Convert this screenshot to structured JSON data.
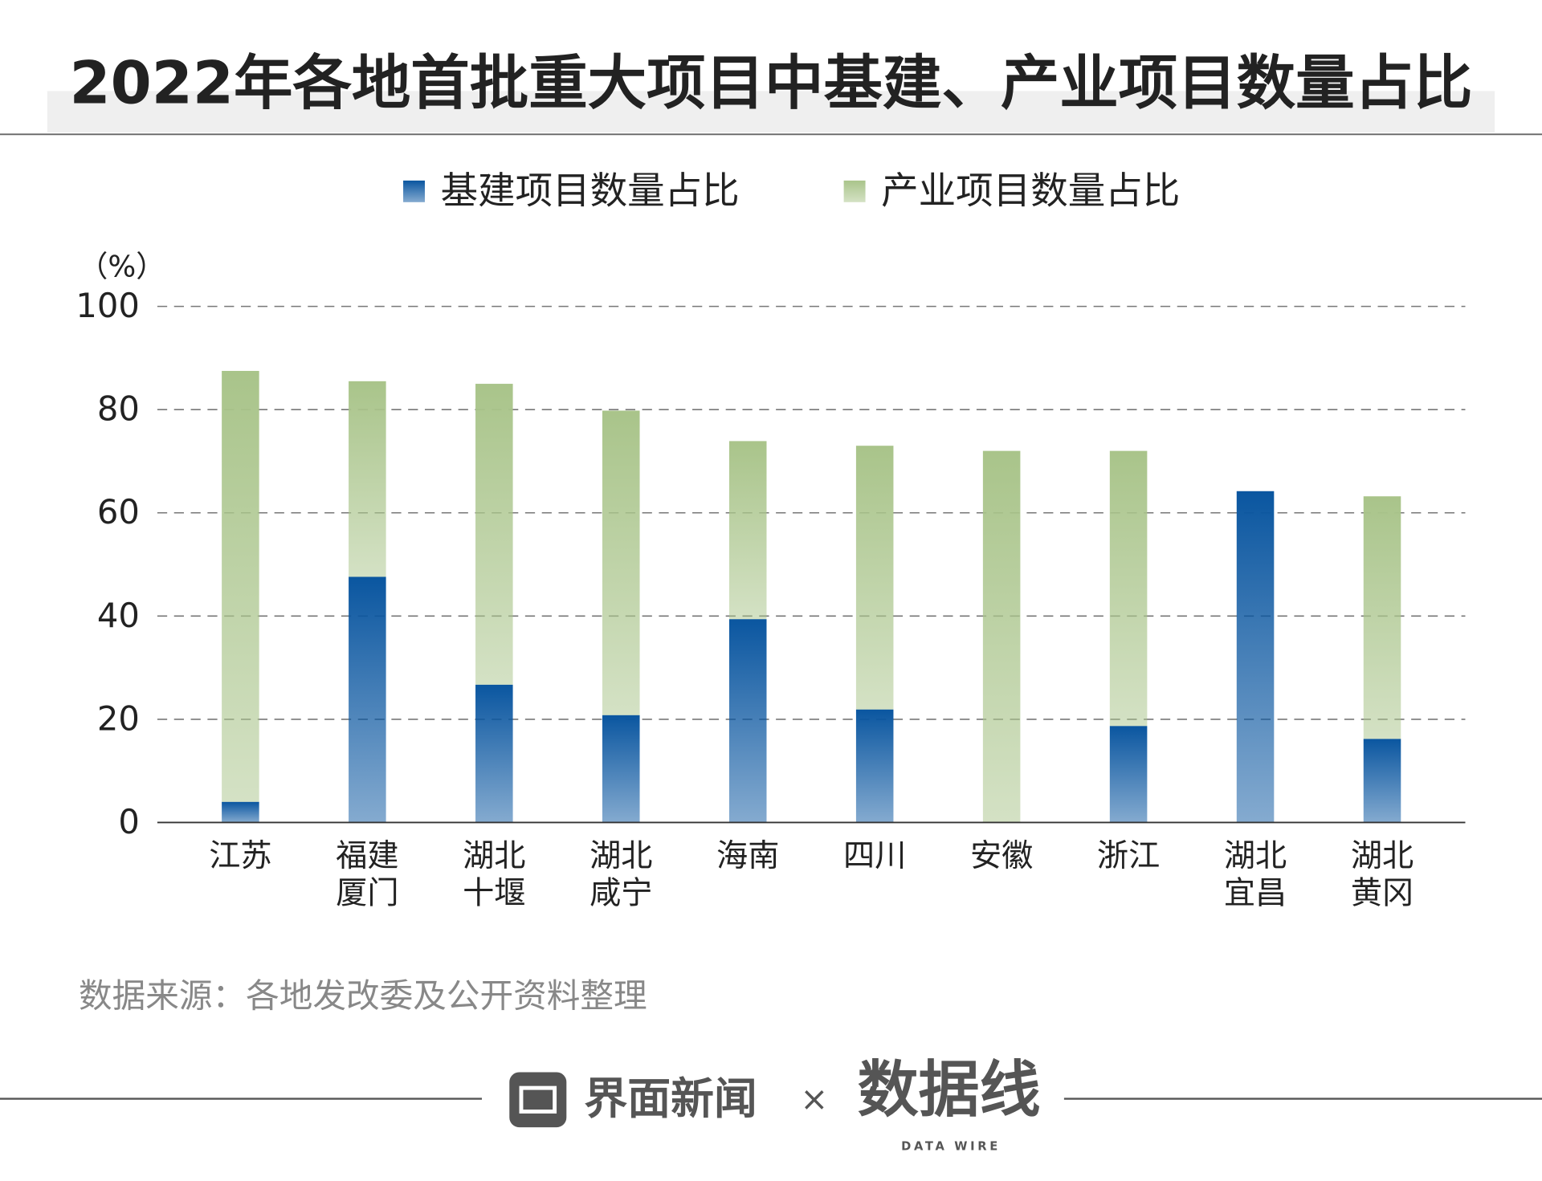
{
  "chart_data": {
    "type": "stacked_bar",
    "title": "2022年各地首批重大项目中基建、产业项目数量占比",
    "y_unit": "（%）",
    "categories": [
      [
        "江苏"
      ],
      [
        "福建",
        "厦门"
      ],
      [
        "湖北",
        "十堰"
      ],
      [
        "湖北",
        "咸宁"
      ],
      [
        "海南"
      ],
      [
        "四川"
      ],
      [
        "安徽"
      ],
      [
        "浙江"
      ],
      [
        "湖北",
        "宜昌"
      ],
      [
        "湖北",
        "黄冈"
      ]
    ],
    "series": [
      {
        "name": "基建项目数量占比",
        "color": "#0a56a0",
        "values": [
          4,
          47.6,
          26.7,
          20.8,
          39.4,
          21.9,
          0,
          18.7,
          64.2,
          16.2
        ]
      },
      {
        "name": "产业项目数量占比",
        "color": "#a9c48a",
        "values": [
          83.5,
          37.9,
          58.3,
          59,
          34.5,
          51.1,
          72,
          53.3,
          0,
          47
        ]
      }
    ],
    "ylim": [
      0,
      100
    ],
    "yticks": [
      0,
      20,
      40,
      60,
      80,
      100
    ],
    "grid": true,
    "source": "数据来源：各地发改委及公开资料整理",
    "footer": {
      "brand1": "界面新闻",
      "times": "×",
      "brand2": "数据线",
      "brand2_sub": "DATA WIRE"
    }
  }
}
